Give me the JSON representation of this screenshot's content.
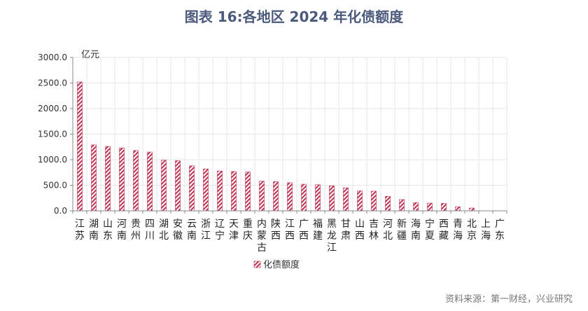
{
  "title": "图表 16:各地区 2024 年化债额度",
  "source": "资料来源：第一财经，兴业研究",
  "colors": {
    "bar": "#c0304f",
    "title": "#4b5a7c",
    "axis": "#888888"
  },
  "chart_data": {
    "type": "bar",
    "title": "图表 16:各地区 2024 年化债额度",
    "ylabel": "亿元",
    "xlabel": "",
    "ylim": [
      0,
      3000
    ],
    "yticks": [
      "0.0",
      "500.0",
      "1000.0",
      "1500.0",
      "2000.0",
      "2500.0",
      "3000.0"
    ],
    "grid": true,
    "legend": "bottom",
    "series": [
      {
        "name": "化债额度",
        "values": [
          2520,
          1290,
          1260,
          1230,
          1180,
          1150,
          990,
          980,
          880,
          820,
          780,
          770,
          760,
          580,
          570,
          550,
          520,
          510,
          490,
          450,
          390,
          385,
          285,
          220,
          160,
          150,
          145,
          80,
          55,
          0,
          0
        ]
      }
    ],
    "categories": [
      "江苏",
      "湖南",
      "山东",
      "河南",
      "贵州",
      "四川",
      "湖北",
      "安徽",
      "云南",
      "浙江",
      "辽宁",
      "天津",
      "重庆",
      "内蒙古",
      "陕西",
      "江西",
      "广西",
      "福建",
      "黑龙江",
      "甘肃",
      "山西",
      "吉林",
      "河北",
      "新疆",
      "海南",
      "宁夏",
      "西藏",
      "青海",
      "北京",
      "上海",
      "广东"
    ]
  }
}
